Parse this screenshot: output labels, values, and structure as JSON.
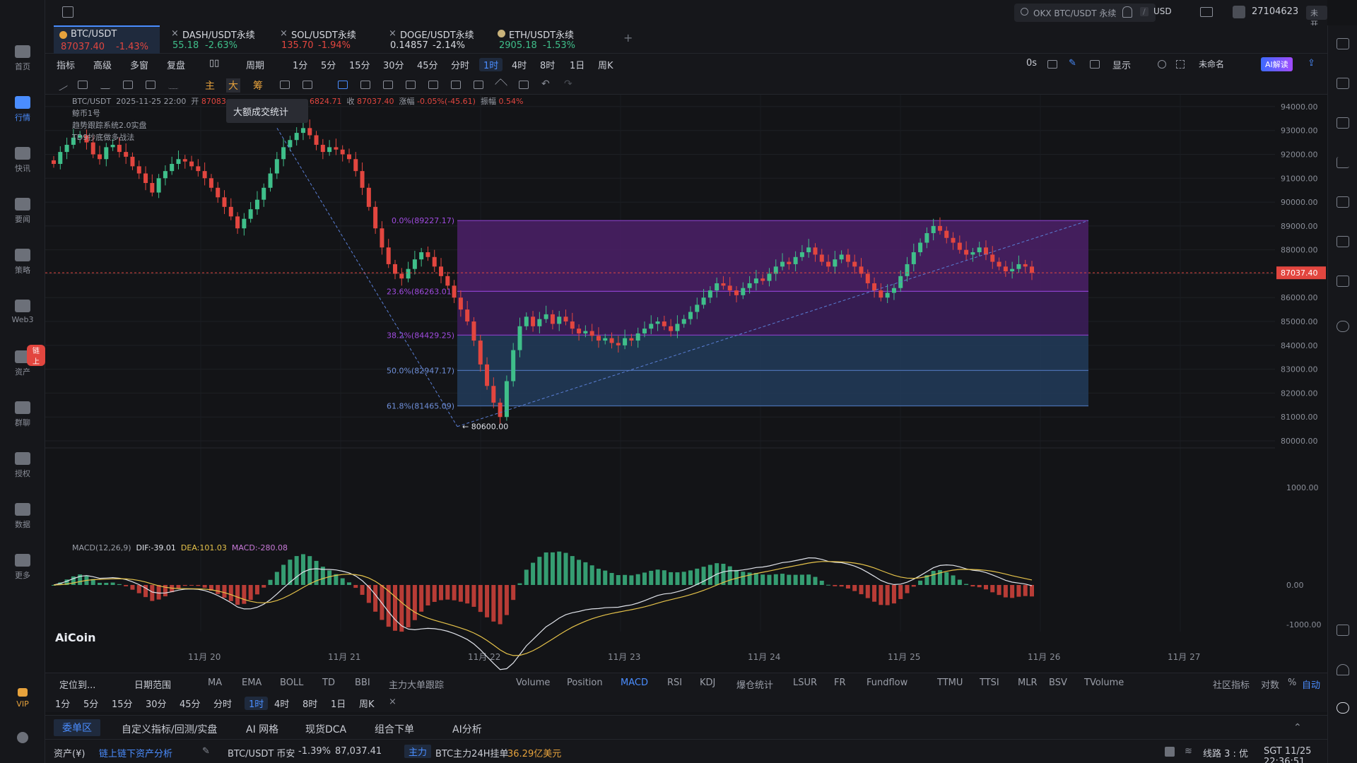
{
  "topbar": {
    "search_placeholder": "OKX BTC/USDT 永续",
    "search_shortcut": "/",
    "currency": "USD",
    "user_id": "27104623",
    "vip_status": "未开通"
  },
  "sidebar": {
    "items": [
      {
        "label": "首页",
        "icon": "home-icon"
      },
      {
        "label": "行情",
        "icon": "chart-bars-icon"
      },
      {
        "label": "快讯",
        "icon": "news-icon"
      },
      {
        "label": "要闻",
        "icon": "document-icon"
      },
      {
        "label": "策略",
        "icon": "robot-icon"
      },
      {
        "label": "Web3",
        "icon": "web3-icon"
      },
      {
        "label": "资产",
        "icon": "wallet-icon"
      },
      {
        "label": "群聊",
        "icon": "chat-icon"
      },
      {
        "label": "授权",
        "icon": "authorize-icon"
      },
      {
        "label": "数据",
        "icon": "data-icon"
      },
      {
        "label": "更多",
        "icon": "grid-icon"
      }
    ],
    "asset_badge": "链上",
    "vip_label": "VIP"
  },
  "tickers": [
    {
      "name": "BTC/USDT",
      "price": "87037.40",
      "change": "-1.43%",
      "dir": "dn"
    },
    {
      "name": "DASH/USDT永续",
      "price": "55.18",
      "change": "-2.63%",
      "dir": "up"
    },
    {
      "name": "SOL/USDT永续",
      "price": "135.70",
      "change": "-1.94%",
      "dir": "dn"
    },
    {
      "name": "DOGE/USDT永续",
      "price": "0.14857",
      "change": "-2.14%",
      "dir": "plain"
    },
    {
      "name": "ETH/USDT永续",
      "price": "2905.18",
      "change": "-1.53%",
      "dir": "up"
    }
  ],
  "periodrow": {
    "left": [
      "指标",
      "高级",
      "多窗",
      "复盘",
      "周期"
    ],
    "periods": [
      "1分",
      "5分",
      "15分",
      "30分",
      "45分",
      "分时",
      "1时",
      "4时",
      "8时",
      "1日",
      "周K"
    ],
    "selected": "1时",
    "right": {
      "timer": "0s",
      "display": "显示",
      "unnamed": "未命名",
      "ai": "AI解读"
    }
  },
  "tools": {
    "main": "主",
    "big": "大",
    "chip": "筹"
  },
  "tooltip": "大额成交统计",
  "legend": {
    "symbol": "BTC/USDT",
    "datetime": "2025-11-25 22:00",
    "open_label": "开",
    "open": "87083",
    "low_value": "6824.71",
    "close_label": "收",
    "close": "87037.40",
    "change_label": "涨幅",
    "change": "-0.05%(-45.61)",
    "amp_label": "振幅",
    "amp": "0.54%",
    "ind1": "鲸币1号",
    "ind2": "趋势跟踪系统2.0实盘",
    "ind3": "TD9抄底做多战法",
    "macd_name": "MACD(12,26,9)",
    "dif": "DIF:-39.01",
    "dea": "DEA:101.03",
    "macd": "MACD:-280.08"
  },
  "chart_data": {
    "type": "candlestick",
    "y_range": [
      80000,
      94500
    ],
    "y_ticks": [
      "94000.00",
      "93000.00",
      "92000.00",
      "91000.00",
      "90000.00",
      "89000.00",
      "88000.00",
      "87000.00",
      "86000.00",
      "85000.00",
      "84000.00",
      "83000.00",
      "82000.00",
      "81000.00",
      "80000.00"
    ],
    "current_price": "87037.40",
    "x_ticks": [
      "11月 20",
      "11月 21",
      "11月 22",
      "11月 23",
      "11月 24",
      "11月 25",
      "11月 26",
      "11月 27"
    ],
    "fib_levels": [
      {
        "label": "0.0%(89227.17)",
        "price": 89227.17
      },
      {
        "label": "23.6%(86263.01)",
        "price": 86263.01
      },
      {
        "label": "38.2%(84429.25)",
        "price": 84429.25
      },
      {
        "label": "50.0%(82947.17)",
        "price": 82947.17
      },
      {
        "label": "61.8%(81465.09)",
        "price": 81465.09
      }
    ],
    "low_marker": "80600.00",
    "macd_ticks": [
      "1000.00",
      "0.00",
      "-1000.00"
    ],
    "closes": [
      91600,
      92100,
      92400,
      92700,
      92800,
      92500,
      92000,
      91800,
      92300,
      92400,
      92100,
      91900,
      91500,
      91200,
      90800,
      90400,
      91000,
      91300,
      91600,
      91800,
      91700,
      91500,
      91300,
      91000,
      90600,
      90200,
      89800,
      89400,
      88900,
      89300,
      89700,
      90100,
      90600,
      91200,
      91800,
      92300,
      92600,
      92900,
      93100,
      92800,
      92400,
      92100,
      92300,
      92200,
      92000,
      91800,
      91300,
      90600,
      89800,
      88900,
      88100,
      87400,
      87000,
      86800,
      87200,
      87600,
      87900,
      87700,
      87300,
      86900,
      86500,
      86000,
      85500,
      85000,
      84200,
      83200,
      82300,
      81600,
      81000,
      82500,
      83800,
      84800,
      85200,
      84800,
      85100,
      85300,
      84900,
      85200,
      85000,
      84700,
      84500,
      84600,
      84400,
      84200,
      84300,
      84100,
      84000,
      84300,
      84200,
      84500,
      84700,
      84900,
      85000,
      84800,
      84600,
      84900,
      85100,
      85400,
      85700,
      86000,
      86300,
      86600,
      86500,
      86300,
      86100,
      86400,
      86600,
      86800,
      86700,
      87000,
      87300,
      87500,
      87400,
      87700,
      87900,
      88100,
      87800,
      87500,
      87300,
      87600,
      87800,
      87500,
      87300,
      87000,
      86600,
      86300,
      86000,
      86200,
      86400,
      86900,
      87400,
      87900,
      88300,
      88700,
      89000,
      88800,
      88500,
      88300,
      88000,
      87800,
      87900,
      88100,
      87800,
      87500,
      87300,
      87100,
      87200,
      87400,
      87300,
      87037
    ]
  },
  "indicator_bar": {
    "left": [
      "定位到...",
      "日期范围"
    ],
    "main": [
      "MA",
      "EMA",
      "BOLL",
      "TD",
      "BBI",
      "主力大单跟踪"
    ],
    "sub": [
      "Volume",
      "Position",
      "MACD",
      "RSI",
      "KDJ",
      "爆仓统计",
      "LSUR",
      "FR",
      "Fundflow",
      "TTMU",
      "TTSI",
      "MLR",
      "BSV",
      "TVolume"
    ],
    "sub_selected": "MACD",
    "right": [
      "社区指标",
      "对数",
      "%",
      "自动"
    ]
  },
  "periodrow2": {
    "periods": [
      "1分",
      "5分",
      "15分",
      "30分",
      "45分",
      "分时",
      "1时",
      "4时",
      "8时",
      "1日",
      "周K"
    ],
    "selected": "1时",
    "close": "×"
  },
  "bottom_tabs": {
    "items": [
      "委单区",
      "自定义指标/回测/实盘",
      "AI 网格",
      "现货DCA",
      "组合下单",
      "AI分析"
    ],
    "selected": "委单区"
  },
  "statusbar": {
    "assets": "资产(¥)",
    "onchain": "链上链下资产分析",
    "pair": "BTC/USDT 币安",
    "pct": "-1.39%",
    "price": "87,037.41",
    "tag": "主力",
    "order_label": "BTC主力24H挂单",
    "order_value": "36.29亿美元",
    "line": "线路 3 : 优",
    "time": "SGT 11/25 22:36:51"
  },
  "logo": "AiCoin",
  "colors": {
    "up": "#3fbf8a",
    "down": "#e2463f",
    "accent": "#4a8dff",
    "fib_purple": "#5b2a7a",
    "fib_blue": "#233e5e"
  }
}
